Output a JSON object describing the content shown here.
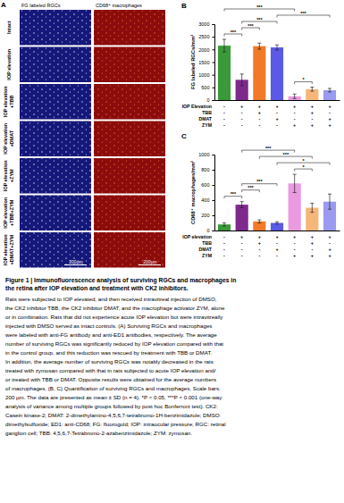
{
  "figure": {
    "panel_labels": [
      "A",
      "B",
      "C"
    ],
    "panel_a": {
      "column_titles": [
        "FG labeled RGCs",
        "CD68⁺ macrophages"
      ],
      "row_labels": [
        [
          "Intact"
        ],
        [
          "IOP elevation"
        ],
        [
          "IOP elevation",
          "+TBB"
        ],
        [
          "IOP elevation",
          "+DMAT"
        ],
        [
          "IOP elevation",
          "+ZYM"
        ],
        [
          "IOP elevation",
          "+TBB+ZYM"
        ],
        [
          "IOP elevation",
          "+DMAT+ZYM"
        ]
      ],
      "scale_bar": "200µm"
    },
    "caption": {
      "title_lines": [
        "Figure 1 | Immunofluorescence analysis of surviving RGCs and macrophages in",
        "the retina after IOP elevation and treatment with CK2 inhibitors."
      ],
      "body_lines": [
        "Rats were subjected to IOP elevated, and then received intravitreal injection of DMSO,",
        "the CK2 inhibitor TBB, the CK2 inhibitor DMAT, and the macrophage activator ZYM, alone",
        "or in combination. Rats that did not experience acute IOP elevation but were intravitreally",
        "injected with DMSO served as intact controls. (A) Surviving RGCs and macrophages",
        "were labeled with anti-FG antibody and anti-ED1 antibodies, respectively. The average",
        "number of surviving RGCs was significantly reduced by IOP elevation compared with that",
        "in the control group, and this reduction was rescued by treatment with TBB or DMAT.",
        "In addition, the average number of surviving RGCs was notably decreased in the rats",
        "treated with zymosan compared with that in rats subjected to acute IOP elevation and/",
        "or treated with TBB or DMAT. Opposite results were obtained for the average numbers",
        "of macrophages. (B, C) Quantificaiton of surviving RGCs and macrophages. Scale bars:",
        "200 µm. The data are presented as mean ± SD (n = 4). *P < 0.05, ***P < 0.001 (one-way",
        "analysis of variance among multiple groups followed by post hoc Bonferroni test). CK2:",
        "Casein kinase-2; DMAT: 2-dimethylamino-4,5,6,7-tetrabromo-1H-benzimidazole; DMSO:",
        "dimethylsulfoxide; ED1: anti-CD68; FG: fluorogold; IOP: intraocular pressure; RGC: retinal",
        "ganglion cell; TBB: 4,5,6,7-Tetrabromo-2-azabenzimidazole; ZYM: zymosan."
      ]
    }
  },
  "chart_data": [
    {
      "type": "bar",
      "y_label": "FG labeled RGCs/mm²",
      "categories": [
        null,
        null,
        null,
        null,
        null,
        null,
        null
      ],
      "values": [
        2150,
        800,
        2130,
        2080,
        150,
        430,
        390
      ],
      "errors": [
        250,
        230,
        120,
        100,
        90,
        80,
        70
      ],
      "colors": [
        "#3a9a3a",
        "#7d2a8c",
        "#f07a2a",
        "#5a5ae6",
        "#e99ae0",
        "#f5b67a",
        "#9a9af0"
      ],
      "ylim": [
        0,
        3000
      ],
      "yticks": [
        0,
        500,
        1000,
        1500,
        2000,
        2500,
        3000
      ],
      "conditions": [
        {
          "label": "IOP Elevation",
          "signs": [
            "-",
            "+",
            "+",
            "+",
            "+",
            "+",
            "+"
          ]
        },
        {
          "label": "TBB",
          "signs": [
            "-",
            "-",
            "+",
            "-",
            "-",
            "+",
            "-"
          ]
        },
        {
          "label": "DMAT",
          "signs": [
            "-",
            "-",
            "-",
            "+",
            "-",
            "-",
            "+"
          ]
        },
        {
          "label": "ZYM",
          "signs": [
            "-",
            "-",
            "-",
            "-",
            "+",
            "+",
            "+"
          ]
        }
      ],
      "significance": [
        {
          "from": 0,
          "to": 1,
          "label": "***"
        },
        {
          "from": 4,
          "to": 5,
          "label": "*"
        },
        {
          "from": 1,
          "to": 2,
          "label": "***"
        },
        {
          "from": 1,
          "to": 3,
          "label": "***"
        },
        {
          "from": 3,
          "to": 6,
          "label": "***"
        },
        {
          "from": 0,
          "to": 4,
          "label": "***"
        }
      ]
    },
    {
      "type": "bar",
      "y_label": "CD68⁺ macrophages/mm²",
      "categories": [
        null,
        null,
        null,
        null,
        null,
        null,
        null
      ],
      "values": [
        80,
        340,
        120,
        100,
        620,
        300,
        380
      ],
      "errors": [
        20,
        40,
        20,
        15,
        120,
        60,
        100
      ],
      "colors": [
        "#3a9a3a",
        "#7d2a8c",
        "#f07a2a",
        "#5a5ae6",
        "#e99ae0",
        "#f5b67a",
        "#9a9af0"
      ],
      "ylim": [
        0,
        1000
      ],
      "yticks": [
        0,
        200,
        400,
        600,
        800,
        1000
      ],
      "conditions": [
        {
          "label": "IOP elevation",
          "signs": [
            "-",
            "+",
            "+",
            "+",
            "+",
            "+",
            "+"
          ]
        },
        {
          "label": "TBB",
          "signs": [
            "-",
            "-",
            "+",
            "-",
            "-",
            "+",
            "-"
          ]
        },
        {
          "label": "DMAT",
          "signs": [
            "-",
            "-",
            "-",
            "+",
            "-",
            "-",
            "+"
          ]
        },
        {
          "label": "ZYM",
          "signs": [
            "-",
            "-",
            "-",
            "-",
            "+",
            "+",
            "+"
          ]
        }
      ],
      "significance": [
        {
          "from": 0,
          "to": 1,
          "label": "***"
        },
        {
          "from": 4,
          "to": 5,
          "label": "*"
        },
        {
          "from": 1,
          "to": 2,
          "label": "***"
        },
        {
          "from": 1,
          "to": 3,
          "label": "***"
        },
        {
          "from": 3,
          "to": 6,
          "label": "*"
        },
        {
          "from": 2,
          "to": 5,
          "label": "***"
        },
        {
          "from": 1,
          "to": 4,
          "label": "***"
        }
      ]
    }
  ]
}
